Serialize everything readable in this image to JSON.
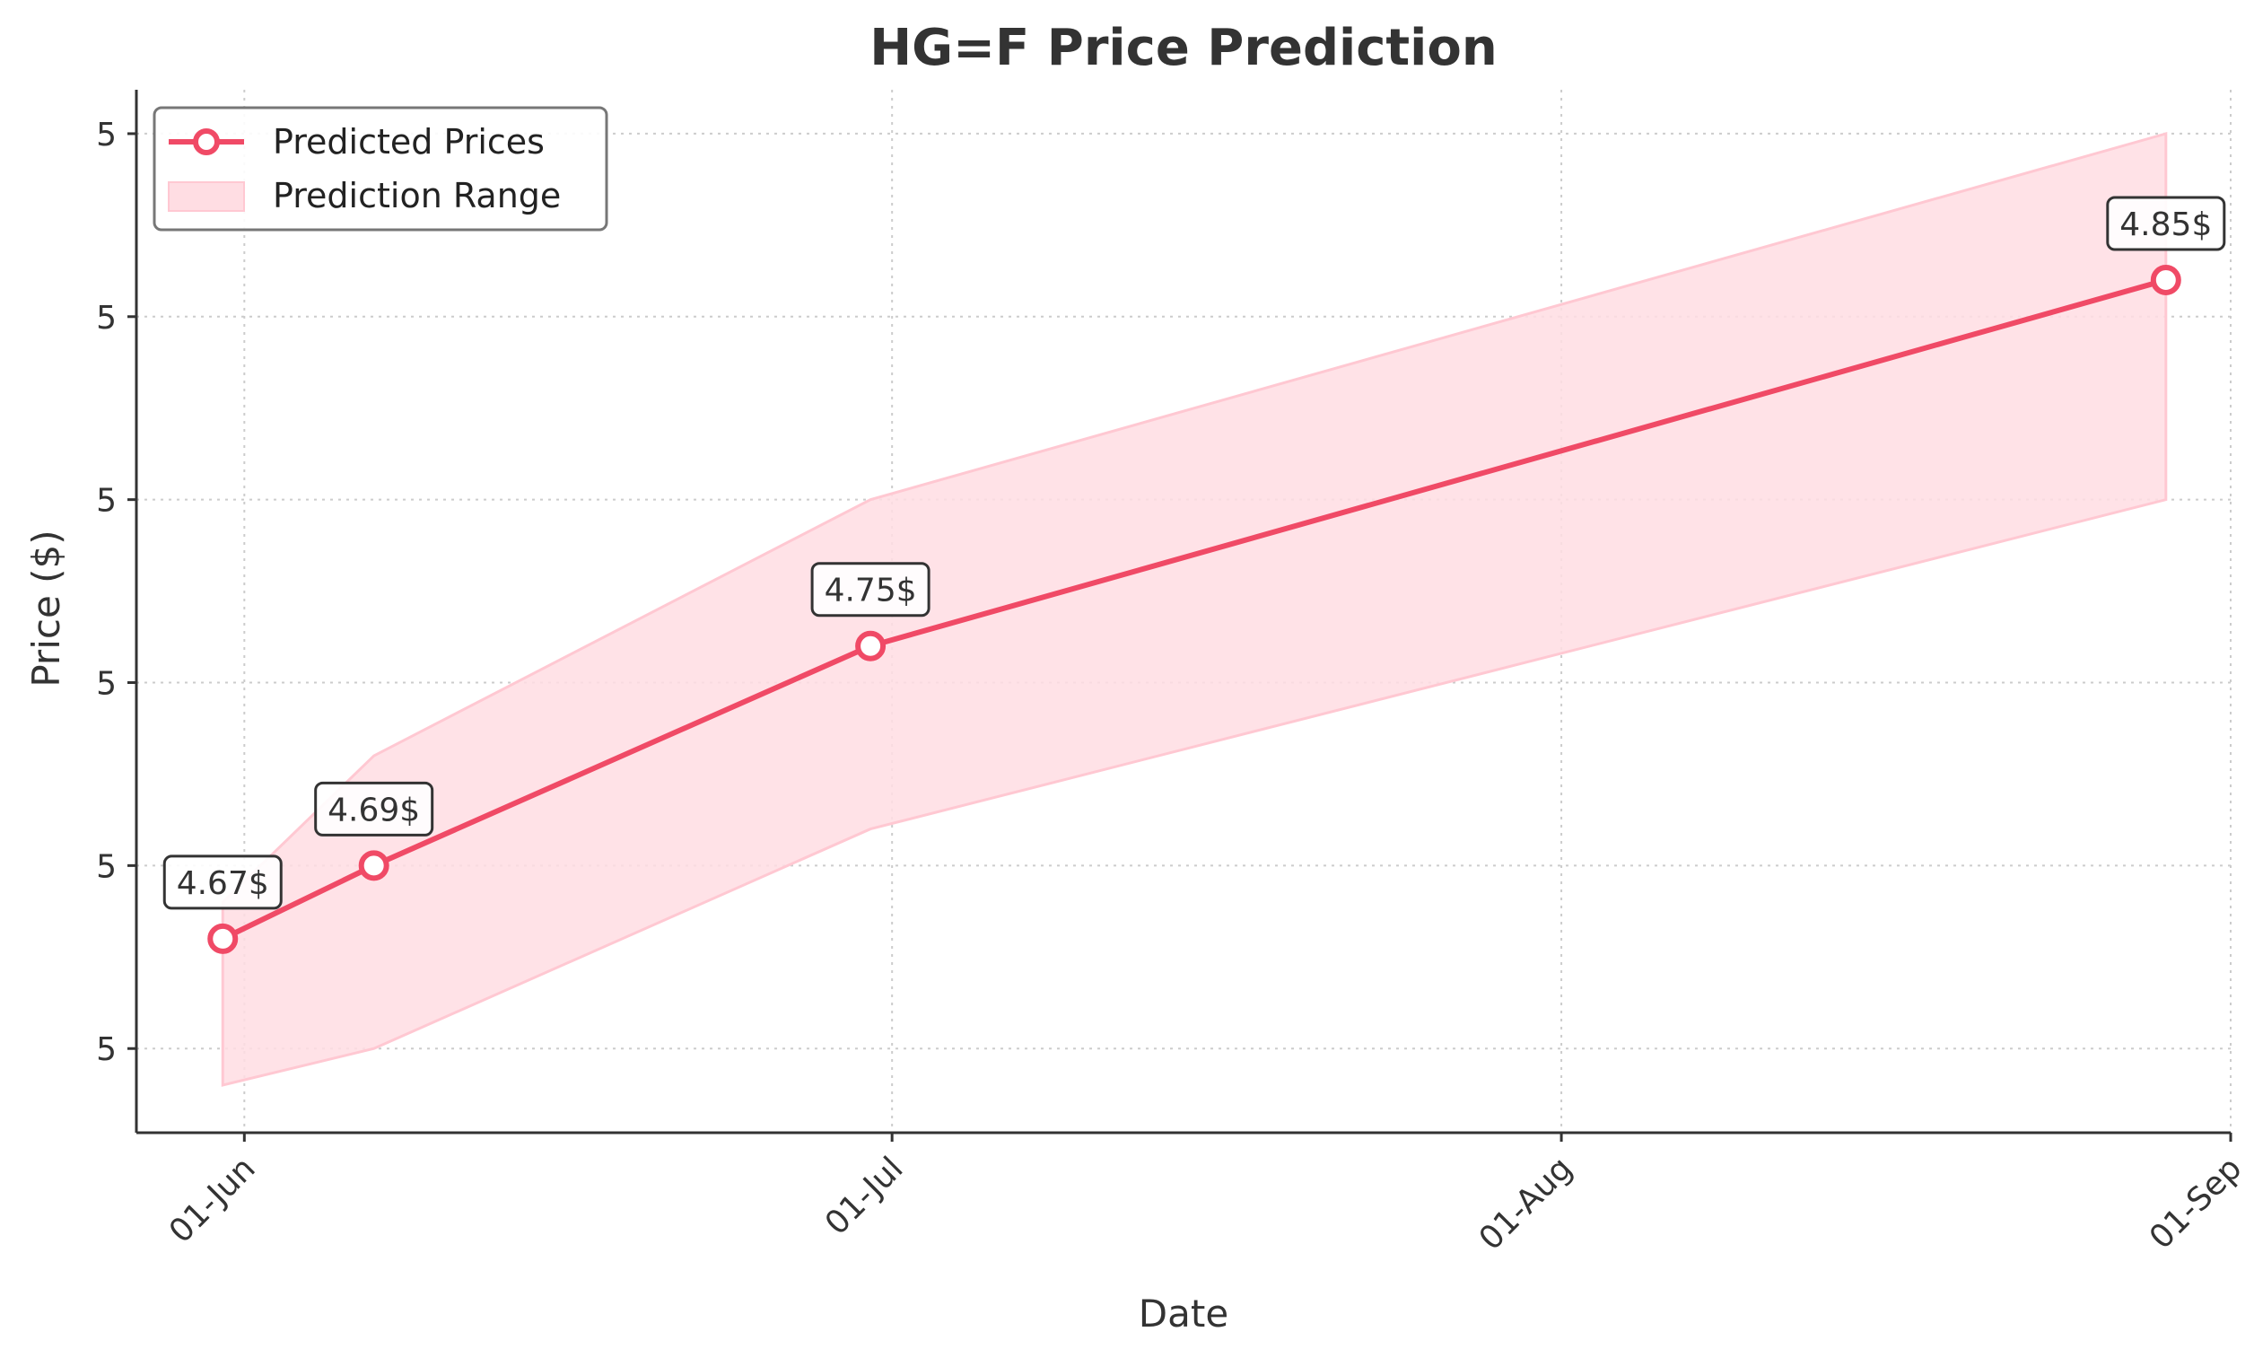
{
  "chart_data": {
    "type": "line",
    "title": "HG=F Price Prediction",
    "xlabel": "Date",
    "ylabel": "Price ($)",
    "x_tick_labels": [
      "01-Jun",
      "01-Jul",
      "01-Aug",
      "01-Sep"
    ],
    "y_tick_labels": [
      "5",
      "5",
      "5",
      "5",
      "5",
      "5"
    ],
    "x_ticks": [
      "2025-06-01",
      "2025-07-01",
      "2025-08-01",
      "2025-09-01"
    ],
    "y_ticks": [
      4.64,
      4.69,
      4.74,
      4.79,
      4.84,
      4.89
    ],
    "xlim": [
      "2025-05-27",
      "2025-09-01"
    ],
    "ylim": [
      4.617,
      4.902
    ],
    "grid": true,
    "legend_position": "top-left",
    "legend": [
      "Predicted Prices",
      "Prediction Range"
    ],
    "series": [
      {
        "name": "Predicted Prices",
        "x": [
          "2025-05-31",
          "2025-06-07",
          "2025-06-30",
          "2025-08-29"
        ],
        "y": [
          4.67,
          4.69,
          4.75,
          4.85
        ],
        "data_labels": [
          "4.67$",
          "4.69$",
          "4.75$",
          "4.85$"
        ],
        "color": "#f04a66"
      },
      {
        "name": "Prediction Range",
        "x": [
          "2025-05-31",
          "2025-06-07",
          "2025-06-30",
          "2025-08-29"
        ],
        "lower": [
          4.63,
          4.64,
          4.7,
          4.79
        ],
        "upper": [
          4.68,
          4.72,
          4.79,
          4.89
        ],
        "color": "#ffdde3"
      }
    ]
  }
}
